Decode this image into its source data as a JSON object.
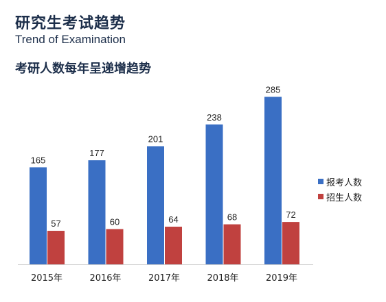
{
  "header": {
    "title": "研究生考试趋势",
    "subtitle": "Trend of Examination",
    "heading": "考研人数每年呈递增趋势"
  },
  "chart_data": {
    "type": "bar",
    "categories": [
      "2015年",
      "2016年",
      "2017年",
      "2018年",
      "2019年"
    ],
    "series": [
      {
        "name": "报考人数",
        "values": [
          165,
          177,
          201,
          238,
          285
        ],
        "color": "#3a6fc4"
      },
      {
        "name": "招生人数",
        "values": [
          57,
          60,
          64,
          68,
          72
        ],
        "color": "#c0413f"
      }
    ],
    "ylim": [
      0,
      310
    ],
    "grid": false,
    "legend": "right"
  }
}
